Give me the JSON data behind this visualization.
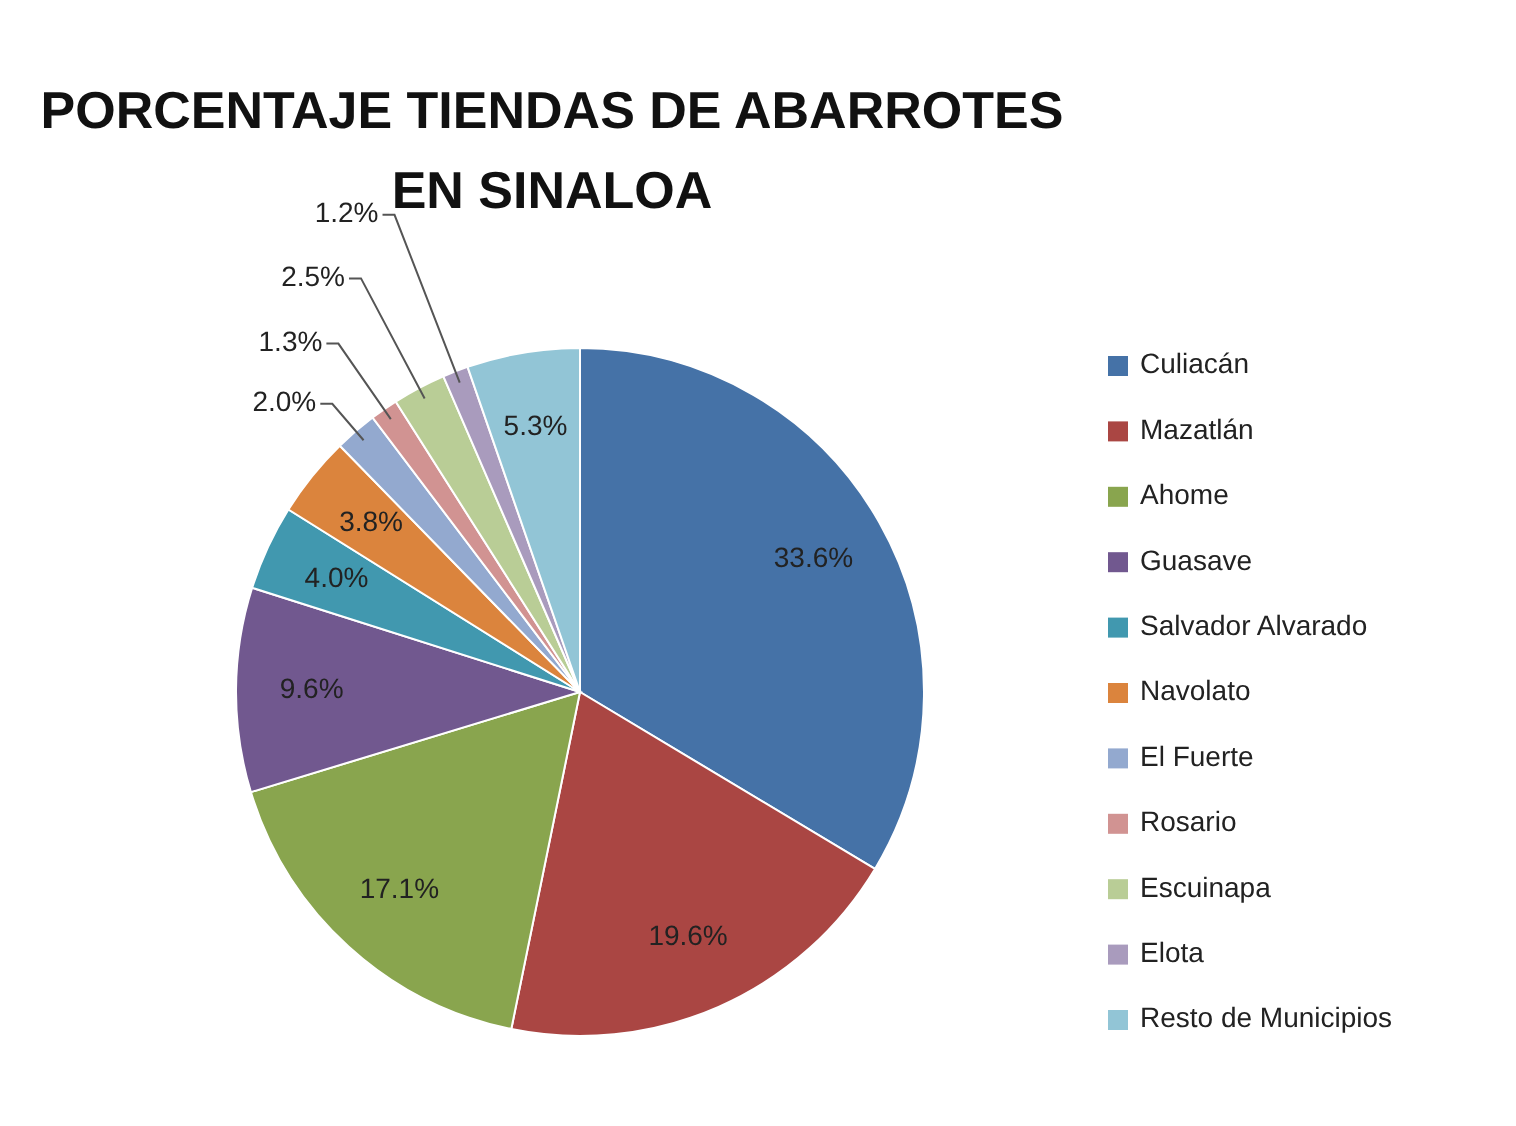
{
  "chart_data": {
    "type": "pie",
    "title": "PORCENTAJE TIENDAS DE ABARROTES EN SINALOA",
    "categories": [
      "Culiacán",
      "Mazatlán",
      "Ahome",
      "Guasave",
      "Salvador Alvarado",
      "Navolato",
      "El Fuerte",
      "Rosario",
      "Escuinapa",
      "Elota",
      "Resto de Municipios"
    ],
    "values": [
      33.6,
      19.6,
      17.1,
      9.6,
      4.0,
      3.8,
      2.0,
      1.3,
      2.5,
      1.2,
      5.3
    ],
    "value_labels": [
      "33.6%",
      "19.6%",
      "17.1%",
      "9.6%",
      "4.0%",
      "3.8%",
      "2.0%",
      "1.3%",
      "2.5%",
      "1.2%",
      "5.3%"
    ],
    "colors": [
      "#4572a7",
      "#aa4643",
      "#89a54e",
      "#71588f",
      "#4198af",
      "#db843d",
      "#93a9cf",
      "#d19392",
      "#b9cd96",
      "#a99bbd",
      "#92c5d6"
    ],
    "legend": "right"
  }
}
